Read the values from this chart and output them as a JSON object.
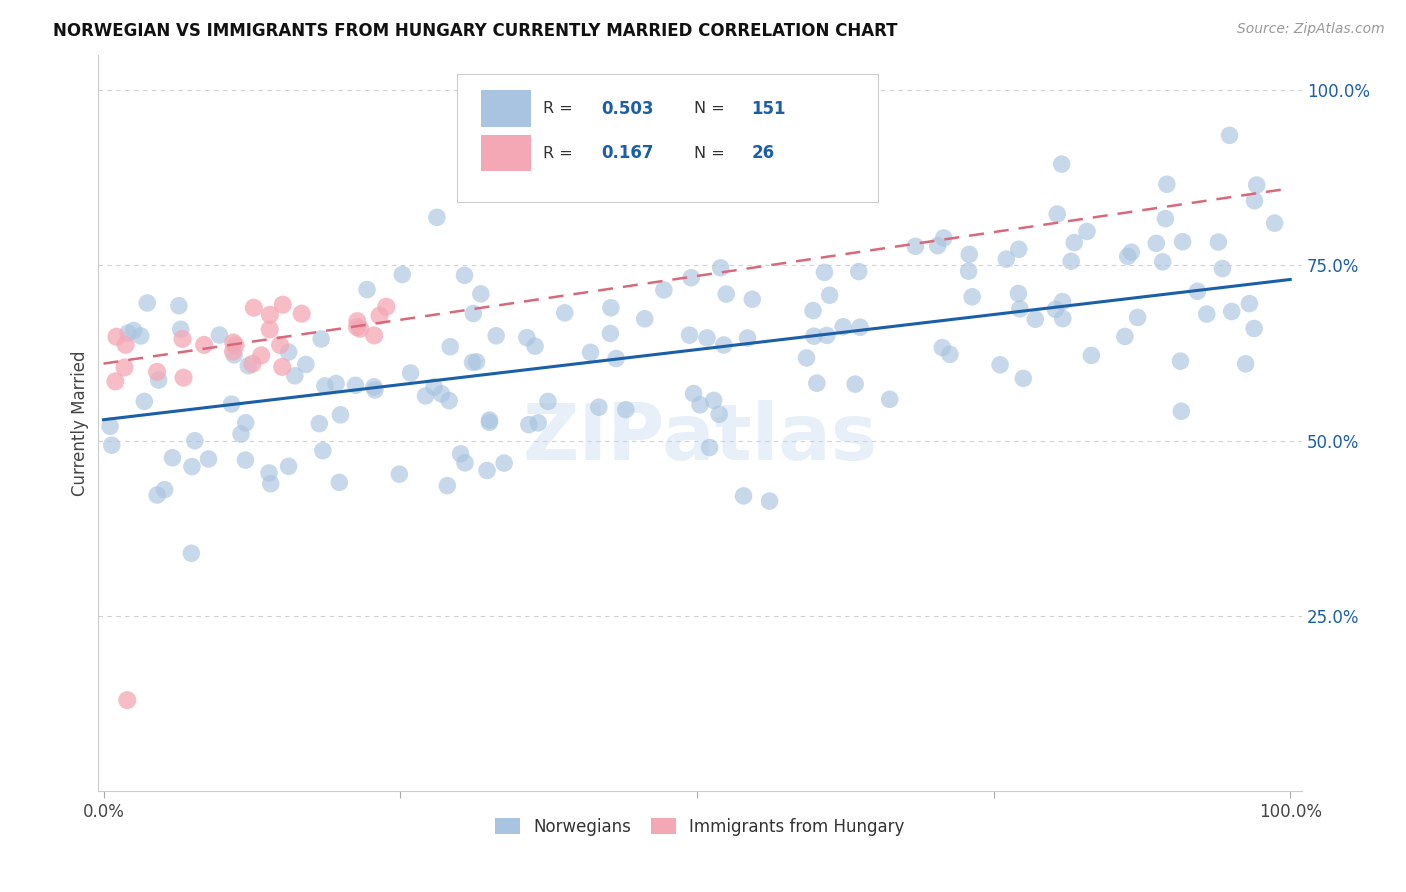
{
  "title": "NORWEGIAN VS IMMIGRANTS FROM HUNGARY CURRENTLY MARRIED CORRELATION CHART",
  "source": "Source: ZipAtlas.com",
  "ylabel": "Currently Married",
  "norwegian_R": 0.503,
  "norwegian_N": 151,
  "hungary_R": 0.167,
  "hungary_N": 26,
  "norwegian_color": "#a8c4e0",
  "norway_line_color": "#1a5fa8",
  "hungary_color": "#f4a7b5",
  "hungary_line_color": "#d9687a",
  "nor_intercept": 0.53,
  "nor_slope": 0.2,
  "hun_intercept": 0.615,
  "hun_slope": 0.22,
  "legend_box_color_norwegian": "#a8c4e0",
  "legend_box_color_hungary": "#f4a7b5",
  "legend_label1": "Norwegians",
  "legend_label2": "Immigrants from Hungary",
  "r_color": "#1a5fa8",
  "background_color": "#ffffff",
  "grid_color": "#d0d0d0"
}
